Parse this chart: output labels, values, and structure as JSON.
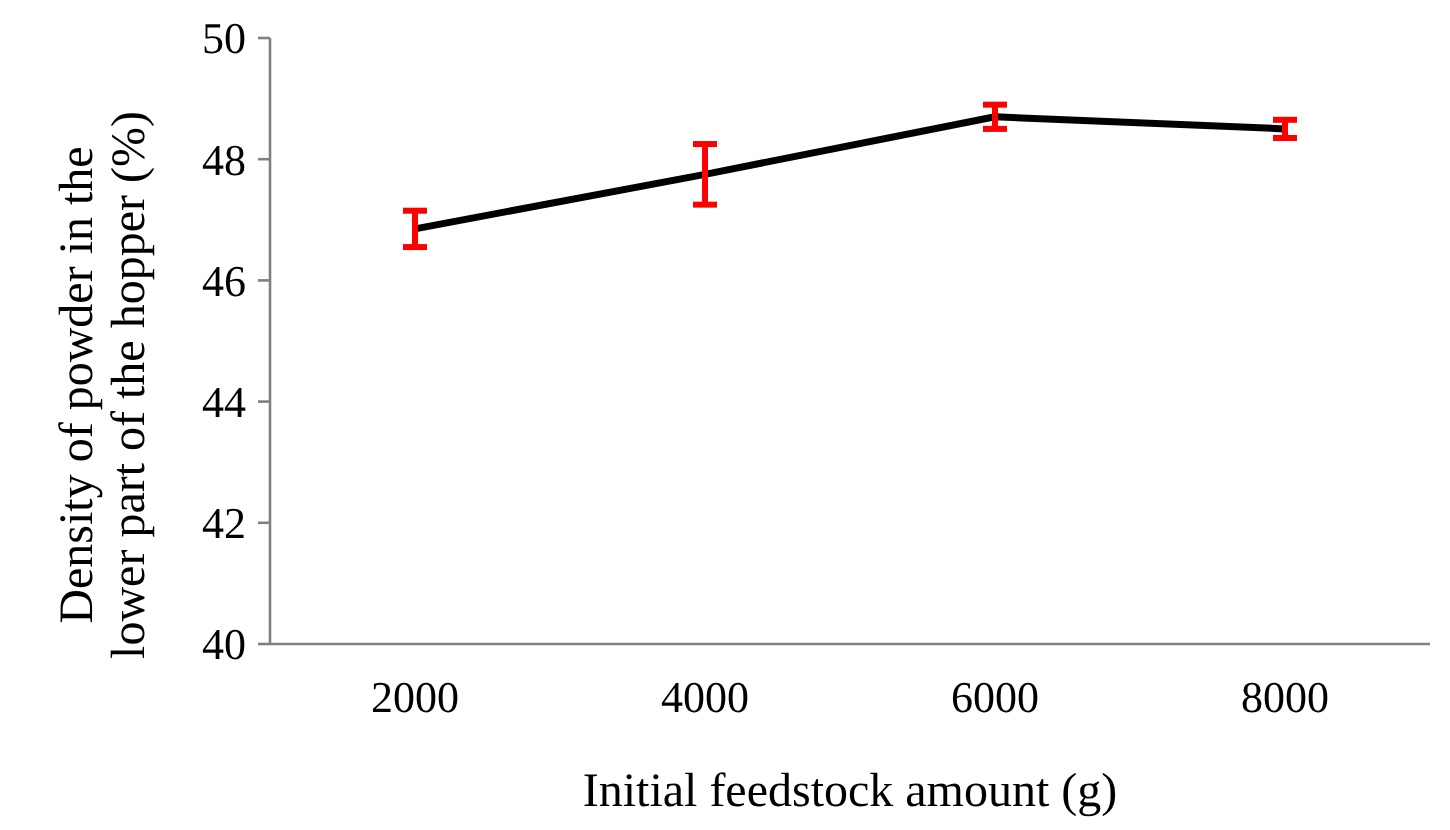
{
  "chart_data": {
    "type": "line",
    "xlabel": "Initial feedstock amount (g)",
    "ylabel": "Density of powder in the lower part of the hopper (%)",
    "categories": [
      "2000",
      "4000",
      "6000",
      "8000"
    ],
    "series": [
      {
        "color": "#000000",
        "values": [
          46.85,
          47.75,
          48.7,
          48.5
        ],
        "errors": [
          0.3,
          0.5,
          0.2,
          0.15
        ]
      }
    ],
    "ylim": [
      40,
      50
    ],
    "yticks": [
      40,
      42,
      44,
      46,
      48,
      50
    ],
    "grid": false,
    "line_style": "solid"
  }
}
